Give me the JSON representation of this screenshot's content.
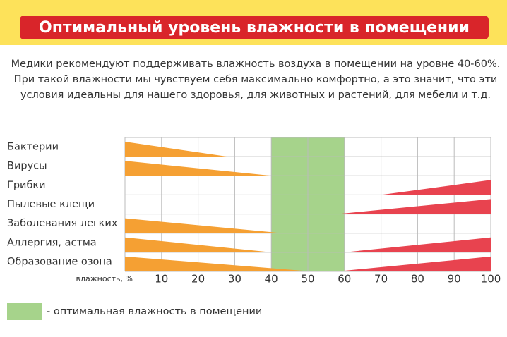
{
  "header": {
    "title": "Оптимальный уровень влажности в помещении"
  },
  "intro": [
    "Медики рекомендуют поддерживать влажность воздуха в помещении на уровне 40-60%.",
    "При такой влажности мы чувствуем себя максимально комфортно, а это значит, что эти",
    "условия идеальны для нашего здоровья, для животных и растений, для мебели и т.д."
  ],
  "chart_data": {
    "type": "wedge",
    "categories": [
      "Бактерии",
      "Вирусы",
      "Грибки",
      "Пылевые клещи",
      "Заболевания легких",
      "Аллергия, астма",
      "Образование озона"
    ],
    "series": [
      {
        "color": "#f5a033",
        "values": [
          28,
          40,
          null,
          null,
          43,
          40,
          51
        ]
      },
      {
        "color": "#e8434f",
        "values": [
          null,
          null,
          70,
          58,
          null,
          60,
          58
        ]
      }
    ],
    "optimal_range": [
      40,
      60
    ],
    "optimal_color": "#a6d38b",
    "legend_label": "- оптимальная влажность в помещении",
    "x_label": "влажность, %",
    "xlim": [
      0,
      100
    ],
    "xticks": [
      10,
      20,
      30,
      40,
      50,
      60,
      70,
      80,
      90,
      100
    ],
    "grid": true
  }
}
